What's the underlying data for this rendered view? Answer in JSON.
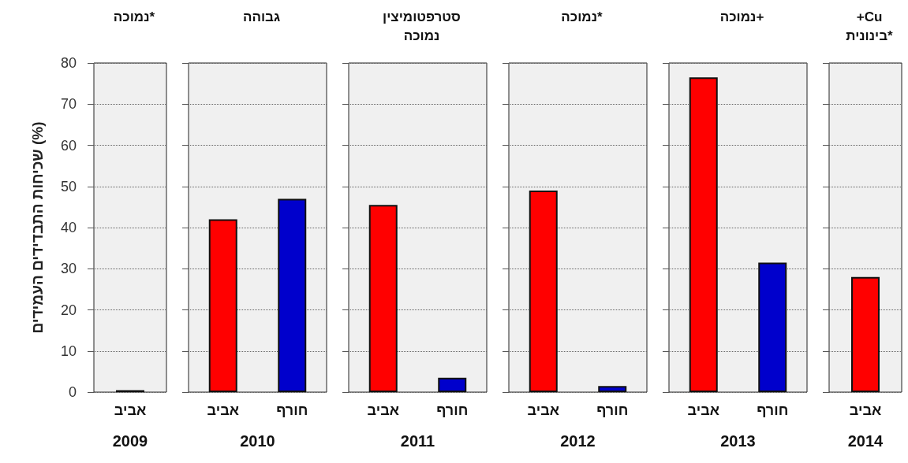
{
  "chart_data": [
    {
      "type": "bar",
      "title": "נמוכה*",
      "xlabel": "2009",
      "ylabel": "שכיחות התבדידים העמידים (%)",
      "categories": [
        "אביב"
      ],
      "values": [
        0.5
      ],
      "colors": [
        "#7a1c1c"
      ],
      "ylim": [
        0,
        80
      ],
      "yticks": [
        0,
        10,
        20,
        30,
        40,
        50,
        60,
        70,
        80
      ],
      "grid": "y"
    },
    {
      "type": "bar",
      "title": "גבוהה",
      "xlabel": "2010",
      "categories": [
        "אביב",
        "חורף"
      ],
      "values": [
        42,
        47
      ],
      "colors": [
        "#ff0000",
        "#0000cc"
      ],
      "ylim": [
        0,
        80
      ],
      "yticks": [
        0,
        10,
        20,
        30,
        40,
        50,
        60,
        70,
        80
      ],
      "grid": "y",
      "tick_labels": "x"
    },
    {
      "type": "bar",
      "title": "סטרפטומיצין\nנמוכה",
      "xlabel": "2011",
      "categories": [
        "אביב",
        "חורף"
      ],
      "values": [
        45.5,
        3.5
      ],
      "colors": [
        "#ff0000",
        "#0000cc"
      ],
      "ylim": [
        0,
        80
      ],
      "yticks": [
        0,
        10,
        20,
        30,
        40,
        50,
        60,
        70,
        80
      ],
      "grid": "y",
      "tick_labels": "x"
    },
    {
      "type": "bar",
      "title": "נמוכה*",
      "xlabel": "2012",
      "categories": [
        "אביב",
        "חורף"
      ],
      "values": [
        49,
        1.5
      ],
      "colors": [
        "#ff0000",
        "#0000cc"
      ],
      "ylim": [
        0,
        80
      ],
      "yticks": [
        0,
        10,
        20,
        30,
        40,
        50,
        60,
        70,
        80
      ],
      "grid": "y",
      "tick_labels": "x"
    },
    {
      "type": "bar",
      "title": "נמוכה+",
      "xlabel": "2013",
      "categories": [
        "אביב",
        "חורף"
      ],
      "values": [
        76.5,
        31.5
      ],
      "colors": [
        "#ff0000",
        "#0000cc"
      ],
      "ylim": [
        0,
        80
      ],
      "yticks": [
        0,
        10,
        20,
        30,
        40,
        50,
        60,
        70,
        80
      ],
      "grid": "y",
      "tick_labels": "x"
    },
    {
      "type": "bar",
      "title": "+Cu\nבינונית*",
      "xlabel": "2014",
      "categories": [
        "אביב"
      ],
      "values": [
        28
      ],
      "colors": [
        "#ff0000"
      ],
      "ylim": [
        0,
        80
      ],
      "yticks": [
        0,
        10,
        20,
        30,
        40,
        50,
        60,
        70,
        80
      ],
      "grid": "y",
      "tick_labels": "x"
    }
  ]
}
